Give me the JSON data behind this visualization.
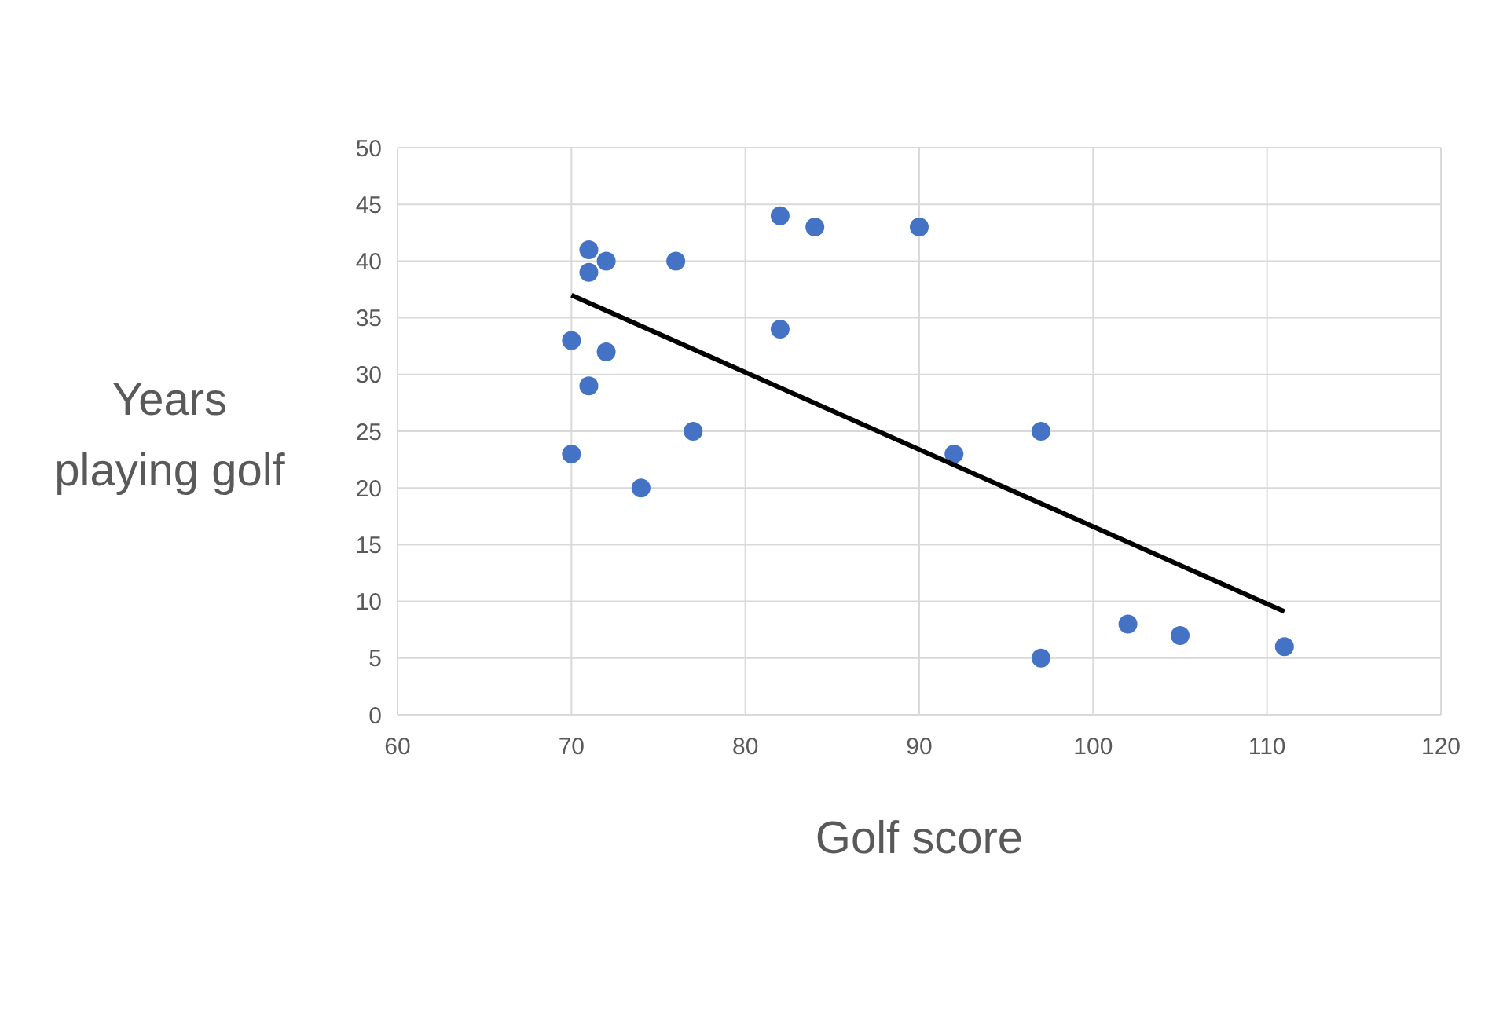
{
  "chart_data": {
    "type": "scatter",
    "xlabel": "Golf score",
    "ylabel": "Years playing golf",
    "xlim": [
      60,
      120
    ],
    "xticks": [
      60,
      70,
      80,
      90,
      100,
      110,
      120
    ],
    "ylim": [
      0,
      50
    ],
    "yticks": [
      0,
      5,
      10,
      15,
      20,
      25,
      30,
      35,
      40,
      45,
      50
    ],
    "grid": true,
    "series": [
      {
        "marker": "circle",
        "color": "#4472c4",
        "x": [
          70,
          71,
          71,
          72,
          76,
          82,
          84,
          90,
          70,
          71,
          72,
          77,
          74,
          82,
          92,
          97,
          102,
          105,
          111,
          97
        ],
        "values": [
          33,
          41,
          39,
          40,
          40,
          44,
          43,
          43,
          23,
          29,
          32,
          25,
          20,
          34,
          23,
          25,
          8,
          7,
          6,
          5
        ]
      },
      {
        "type": "line",
        "color": "#000000",
        "x": [
          70,
          111
        ],
        "values": [
          37,
          9.1
        ],
        "line_style": "solid"
      }
    ]
  }
}
